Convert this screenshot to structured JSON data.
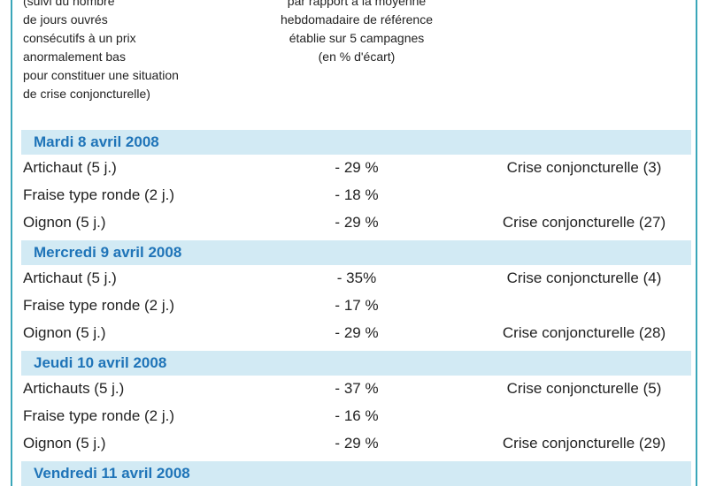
{
  "header": {
    "col1": [
      "(suivi du nombre",
      "de jours ouvrés",
      "consécutifs à un prix",
      "anormalement bas",
      "pour constituer une situation",
      "de crise conjoncturelle)"
    ],
    "col2": [
      "par rapport à la moyenne",
      "hebdomadaire de référence",
      "établie sur 5 campagnes",
      "(en % d'écart)"
    ]
  },
  "sections": [
    {
      "date": "Mardi 8 avril 2008",
      "rows": [
        [
          "Artichaut (5 j.)",
          "- 29 %",
          "Crise conjoncturelle (3)"
        ],
        [
          "Fraise type ronde (2 j.)",
          "- 18 %"
        ],
        [
          "Oignon (5 j.)",
          "- 29 %",
          "Crise conjoncturelle (27)"
        ]
      ]
    },
    {
      "date": "Mercredi 9 avril 2008",
      "rows": [
        [
          "Artichaut (5 j.)",
          "- 35%",
          "Crise conjoncturelle (4)"
        ],
        [
          "Fraise type ronde (2 j.)",
          "- 17 %"
        ],
        [
          "Oignon (5 j.)",
          "- 29 %",
          "Crise conjoncturelle (28)"
        ]
      ]
    },
    {
      "date": "Jeudi 10 avril 2008",
      "rows": [
        [
          "Artichauts (5 j.)",
          "- 37 %",
          "Crise conjoncturelle (5)"
        ],
        [
          "Fraise type ronde (2 j.)",
          "- 16 %"
        ],
        [
          "Oignon (5 j.)",
          "- 29 %",
          "Crise conjoncturelle (29)"
        ]
      ]
    },
    {
      "date": "Vendredi 11 avril 2008",
      "rows": []
    }
  ]
}
